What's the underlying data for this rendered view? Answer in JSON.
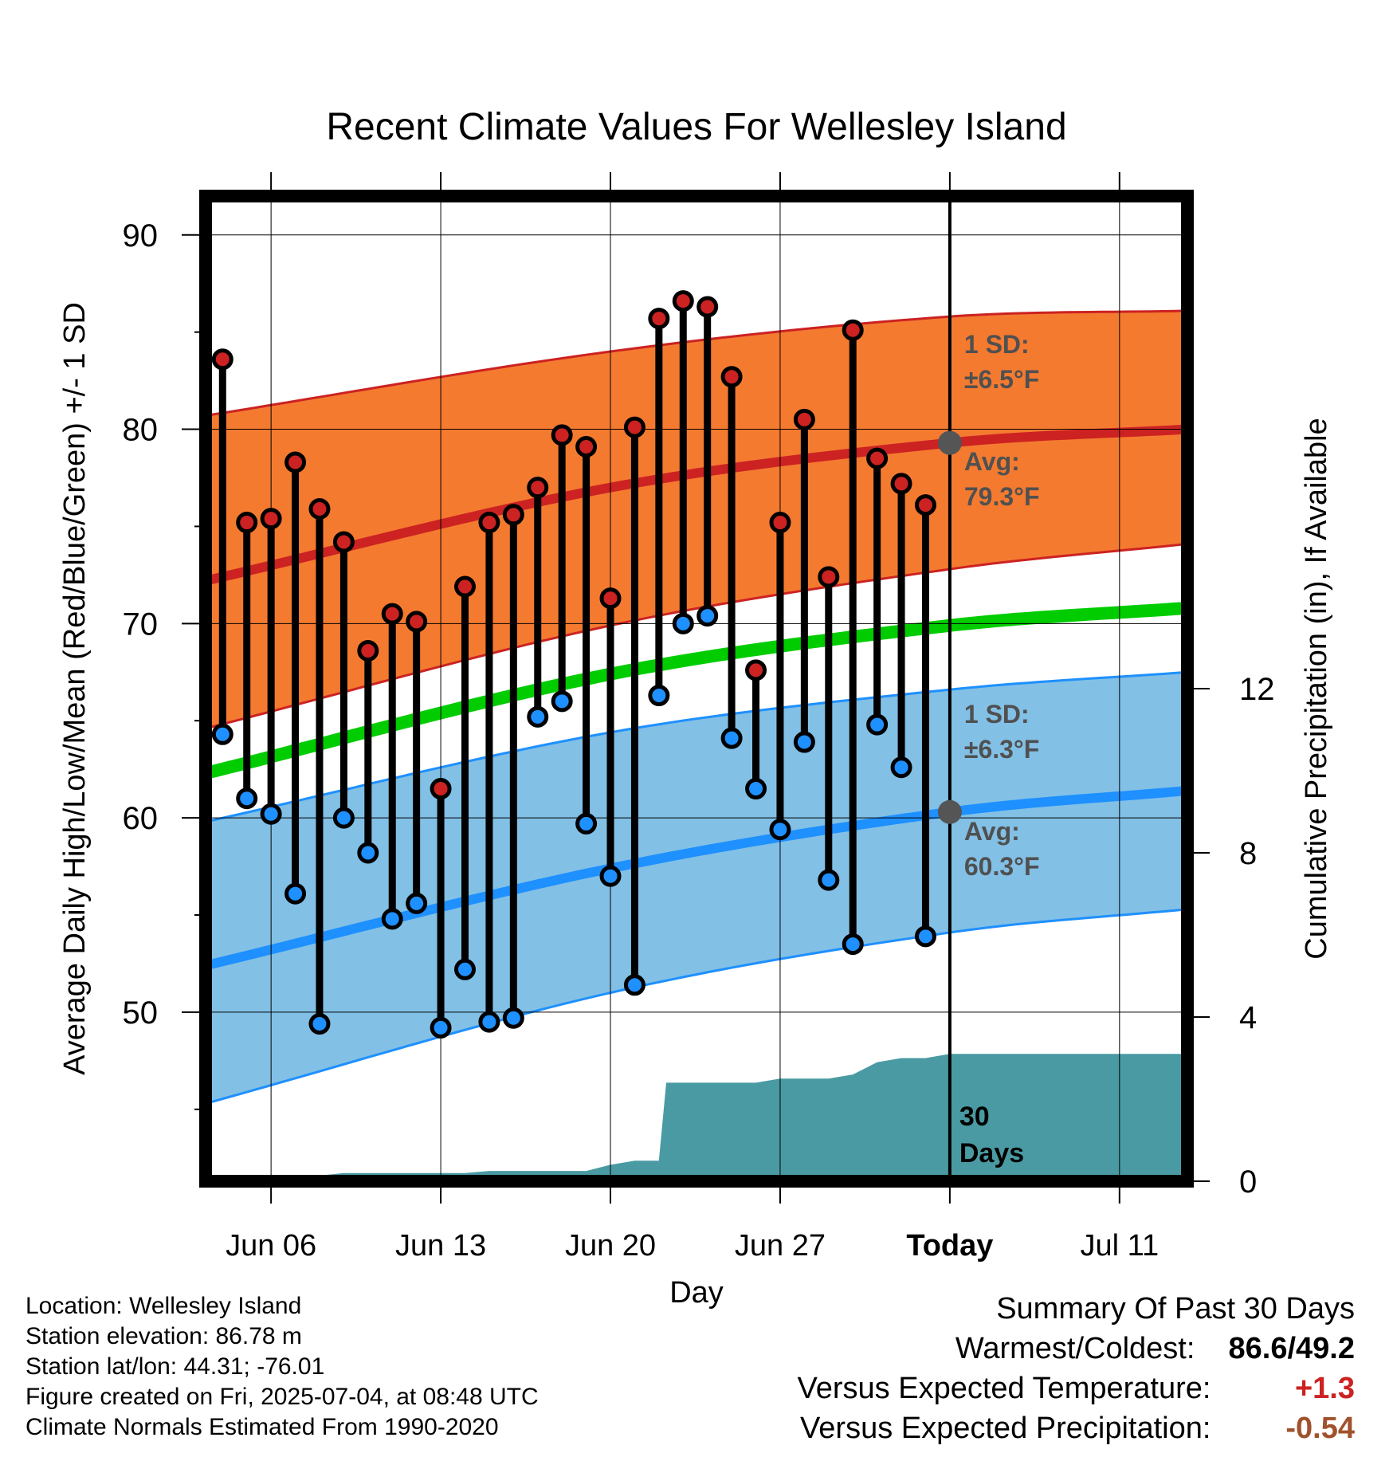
{
  "chart_data": {
    "type": "line",
    "title": "Recent Climate Values For Wellesley Island",
    "xlabel": "Day",
    "ylabel": "Average Daily High/Low/Mean (Red/Blue/Green) +/- 1 SD",
    "y2label": "Cumulative Precipitation (in), If Available",
    "x_start": "Jun 3",
    "x_ticks": [
      "Jun 06",
      "Jun 13",
      "Jun 20",
      "Jun 27",
      "Today",
      "Jul 11"
    ],
    "x_tick_days": [
      6,
      13,
      20,
      27,
      34,
      41
    ],
    "xlim_days": [
      3.3,
      43.8
    ],
    "y_ticks": [
      50,
      60,
      70,
      80,
      90
    ],
    "ylim": [
      41.3,
      92
    ],
    "y2_ticks": [
      0,
      4,
      8,
      12
    ],
    "y2lim": [
      0,
      24
    ],
    "grid": true,
    "today_day": 34,
    "days": [
      4,
      5,
      6,
      7,
      8,
      9,
      10,
      11,
      12,
      13,
      14,
      15,
      16,
      17,
      18,
      19,
      20,
      21,
      22,
      23,
      24,
      25,
      26,
      27,
      28,
      29,
      30,
      31,
      32,
      33
    ],
    "series": [
      {
        "name": "High",
        "color": "#cc2222",
        "values": [
          83.6,
          75.2,
          75.4,
          78.3,
          75.9,
          74.2,
          68.6,
          70.5,
          70.1,
          61.5,
          71.9,
          75.2,
          75.6,
          77.0,
          79.7,
          79.1,
          71.3,
          80.1,
          85.7,
          86.6,
          86.3,
          82.7,
          67.6,
          75.2,
          80.5,
          72.4,
          85.1,
          78.5,
          77.2,
          76.1
        ]
      },
      {
        "name": "Low",
        "color": "#1e90ff",
        "values": [
          64.3,
          61.0,
          60.2,
          56.1,
          49.4,
          60.0,
          58.2,
          54.8,
          55.6,
          49.2,
          52.2,
          49.5,
          49.7,
          65.2,
          66.0,
          59.7,
          57.0,
          51.4,
          66.3,
          70.0,
          70.4,
          64.1,
          61.5,
          59.4,
          63.9,
          56.8,
          53.5,
          64.8,
          62.6,
          53.9
        ]
      },
      {
        "name": "Avg High",
        "color": "#cc2222",
        "days": [
          3.3,
          20,
          34,
          43.8
        ],
        "values": [
          72.2,
          77.0,
          79.3,
          80.0
        ]
      },
      {
        "name": "High +1 SD",
        "color": "#cc2222",
        "days": [
          3.3,
          20,
          34,
          43.8
        ],
        "values": [
          80.7,
          84.0,
          85.8,
          86.1
        ]
      },
      {
        "name": "High -1 SD",
        "color": "#cc2222",
        "days": [
          3.3,
          20,
          34,
          43.8
        ],
        "values": [
          64.6,
          69.9,
          72.8,
          74.1
        ]
      },
      {
        "name": "Mean",
        "color": "#00cc00",
        "days": [
          3.3,
          20,
          34,
          43.8
        ],
        "values": [
          62.3,
          67.4,
          69.9,
          70.8
        ]
      },
      {
        "name": "Avg Low",
        "color": "#1e90ff",
        "days": [
          3.3,
          20,
          34,
          43.8
        ],
        "values": [
          52.4,
          57.4,
          60.3,
          61.4
        ]
      },
      {
        "name": "Low +1 SD",
        "color": "#1e90ff",
        "days": [
          3.3,
          20,
          34,
          43.8
        ],
        "values": [
          59.8,
          64.4,
          66.6,
          67.5
        ]
      },
      {
        "name": "Low -1 SD",
        "color": "#1e90ff",
        "days": [
          3.3,
          20,
          34,
          43.8
        ],
        "values": [
          45.3,
          51.0,
          54.1,
          55.3
        ]
      }
    ],
    "precip": {
      "color": "#4a9aa3",
      "days": [
        7.7,
        8.2,
        9,
        10,
        12,
        14,
        15,
        17,
        18,
        19,
        20,
        21,
        22,
        22.3,
        23,
        24,
        25,
        26,
        27,
        28,
        29,
        30,
        31,
        32,
        33,
        34,
        43.8
      ],
      "values": [
        0,
        0.15,
        0.2,
        0.2,
        0.2,
        0.2,
        0.25,
        0.25,
        0.25,
        0.25,
        0.4,
        0.5,
        0.5,
        2.4,
        2.4,
        2.4,
        2.4,
        2.4,
        2.5,
        2.5,
        2.5,
        2.6,
        2.9,
        3.0,
        3.0,
        3.1,
        3.1
      ]
    },
    "annotations": {
      "high_sd": [
        "1 SD:",
        "±6.5°F"
      ],
      "high_avg": [
        "Avg:",
        "79.3°F"
      ],
      "low_sd": [
        "1 SD:",
        "±6.3°F"
      ],
      "low_avg": [
        "Avg:",
        "60.3°F"
      ],
      "period": [
        "30",
        "Days"
      ]
    },
    "colors": {
      "high_band": "#f47a30",
      "low_band": "#82c0e6",
      "mean_line": "#00cc00",
      "avg_high_line": "#cc2222",
      "avg_low_line": "#1e90ff",
      "annotation_text": "#505050",
      "today_marker": "#555555"
    }
  },
  "location": {
    "lines": [
      "Location: Wellesley Island",
      "Station elevation: 86.78 m",
      "Station lat/lon: 44.31; -76.01",
      "Figure created on Fri, 2025-07-04, at 08:48 UTC",
      "Climate Normals Estimated From 1990-2020"
    ]
  },
  "summary": {
    "title": "Summary Of Past 30 Days",
    "warmest_coldest_label": "Warmest/Coldest:",
    "warmest_coldest_value": "86.6/49.2",
    "temp_label": "Versus Expected Temperature:",
    "temp_value": "+1.3",
    "temp_color": "#cc2222",
    "precip_label": "Versus Expected Precipitation:",
    "precip_value": "-0.54",
    "precip_color": "#a0522d"
  }
}
